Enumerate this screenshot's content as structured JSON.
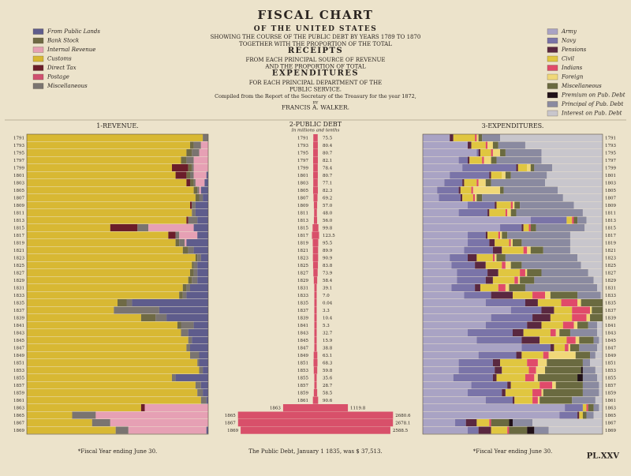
{
  "header": {
    "lines": [
      "FISCAL CHART",
      "OF THE UNITED STATES",
      "SHOWING THE COURSE OF THE PUBLIC DEBT BY YEARS 1789 TO 1870",
      "TOGETHER WITH THE PROPORTION OF THE TOTAL",
      "RECEIPTS",
      "FROM EACH PRINCIPAL SOURCE OF REVENUE",
      "AND THE PROPORTION OF TOTAL",
      "EXPENDITURES",
      "FOR EACH PRINCIPAL DEPARTMENT OF THE",
      "PUBLIC SERVICE.",
      "Compiled from the Report of the Secretary of the Treasury for the year 1872,",
      "BY",
      "FRANCIS A. WALKER."
    ],
    "plate": "PL.XXV",
    "debt_note": "The Public Debt, January 1 1835, was $ 37,513."
  },
  "chart_data": [
    {
      "type": "stacked-bar",
      "title": "1-REVENUE.",
      "footnote": "*Fiscal Year ending June 30.",
      "xlim": [
        0,
        100
      ],
      "categories": [
        "1791",
        "1793",
        "1795",
        "1797",
        "1799",
        "1801",
        "1803",
        "1805",
        "1807",
        "1809",
        "1811",
        "1813",
        "1815",
        "1817",
        "1819",
        "1821",
        "1823",
        "1825",
        "1827",
        "1829",
        "1831",
        "1833",
        "1835",
        "1837",
        "1839",
        "1841",
        "1843",
        "1845",
        "1847",
        "1849",
        "1851",
        "1853",
        "1855",
        "1857",
        "1859",
        "1861",
        "1863",
        "1865",
        "1867",
        "1869"
      ],
      "series": [
        {
          "name": "From Public Lands",
          "color": "#5e5c8c",
          "values": [
            0,
            0,
            0,
            0,
            0,
            1,
            2,
            4,
            3,
            7,
            7,
            6,
            8,
            6,
            12,
            8,
            4,
            6,
            6,
            6,
            10,
            12,
            42,
            27,
            23,
            8,
            11,
            9,
            10,
            5,
            5,
            3,
            18,
            4,
            3,
            1,
            0,
            0,
            0,
            1
          ]
        },
        {
          "name": "Bank Stock",
          "color": "#6f6a45",
          "values": [
            0,
            2,
            3,
            3,
            2,
            2,
            2,
            2,
            2,
            0,
            0,
            0,
            0,
            0,
            2,
            3,
            1,
            1,
            2,
            2,
            2,
            2,
            5,
            0,
            8,
            2,
            0,
            0,
            0,
            0,
            0,
            0,
            0,
            0,
            0,
            0,
            0,
            0,
            0,
            0
          ]
        },
        {
          "name": "Internal Revenue",
          "color": "#e6a0b4",
          "values": [
            0,
            4,
            5,
            8,
            8,
            7,
            5,
            1,
            0,
            0,
            0,
            0,
            25,
            10,
            1,
            0,
            0,
            0,
            0,
            0,
            0,
            0,
            0,
            0,
            0,
            0,
            0,
            0,
            0,
            0,
            0,
            0,
            0,
            0,
            0,
            0,
            35,
            62,
            54,
            43
          ]
        },
        {
          "name": "Customs",
          "color": "#d8b833",
          "values": [
            97,
            90,
            88,
            85,
            80,
            82,
            88,
            92,
            93,
            90,
            91,
            88,
            46,
            78,
            82,
            86,
            93,
            91,
            90,
            89,
            86,
            84,
            50,
            48,
            63,
            83,
            85,
            89,
            88,
            90,
            94,
            95,
            80,
            93,
            94,
            96,
            63,
            25,
            36,
            49
          ]
        },
        {
          "name": "Direct Tax",
          "color": "#6b1e2a",
          "values": [
            0,
            0,
            0,
            0,
            9,
            6,
            2,
            0,
            0,
            1,
            0,
            1,
            15,
            4,
            0,
            0,
            0,
            0,
            0,
            0,
            0,
            0,
            0,
            0,
            0,
            0,
            0,
            0,
            0,
            0,
            0,
            0,
            0,
            0,
            0,
            0,
            2,
            0,
            0,
            0
          ]
        },
        {
          "name": "Postage",
          "color": "#d05070",
          "values": [
            0,
            0,
            0,
            0,
            0,
            0,
            0,
            0,
            0,
            0,
            0,
            0,
            0,
            0,
            0,
            0,
            0,
            0,
            0,
            0,
            0,
            0,
            0,
            0,
            0,
            0,
            0,
            0,
            0,
            0,
            0,
            0,
            0,
            0,
            0,
            0,
            0,
            0,
            0,
            0
          ]
        },
        {
          "name": "Miscellaneous",
          "color": "#7a7470",
          "values": [
            3,
            4,
            4,
            4,
            1,
            2,
            1,
            1,
            2,
            2,
            2,
            5,
            6,
            2,
            3,
            3,
            2,
            2,
            2,
            3,
            2,
            2,
            3,
            25,
            6,
            7,
            4,
            2,
            2,
            5,
            1,
            2,
            2,
            3,
            3,
            3,
            0,
            13,
            10,
            7
          ]
        }
      ]
    },
    {
      "type": "spindle",
      "title": "2-PUBLIC DEBT",
      "subtitle": "In millions and tenths",
      "color": "#d8506a",
      "xlim": [
        0,
        3000
      ],
      "categories": [
        "1791",
        "1793",
        "1795",
        "1797",
        "1799",
        "1801",
        "1803",
        "1805",
        "1807",
        "1809",
        "1811",
        "1813",
        "1815",
        "1817",
        "1819",
        "1821",
        "1823",
        "1825",
        "1827",
        "1829",
        "1831",
        "1833",
        "1835",
        "1837",
        "1839",
        "1841",
        "1843",
        "1845",
        "1847",
        "1849",
        "1851",
        "1853",
        "1855",
        "1857",
        "1859",
        "1861",
        "1863",
        "1865",
        "1867",
        "1869"
      ],
      "values": [
        75.5,
        80.4,
        80.7,
        82.1,
        78.4,
        80.7,
        77.1,
        82.3,
        69.2,
        57.0,
        48.0,
        56.0,
        99.8,
        123.5,
        95.5,
        89.9,
        90.9,
        83.8,
        73.9,
        58.4,
        39.1,
        7.0,
        0.04,
        3.3,
        10.4,
        5.3,
        32.7,
        15.9,
        38.8,
        63.1,
        68.3,
        59.8,
        35.6,
        28.7,
        58.5,
        90.6,
        1119.8,
        2680.6,
        2678.1,
        2588.5
      ],
      "value_labels": [
        "75.5",
        "80.4",
        "80.7",
        "82.1",
        "78.4",
        "80.7",
        "77.1",
        "82.3",
        "69.2",
        "57.0",
        "48.0",
        "56.0",
        "99.8",
        "123.5",
        "95.5",
        "89.9",
        "90.9",
        "83.8",
        "73.9",
        "58.4",
        "39.1",
        "7.0",
        "0.04",
        "3.3",
        "10.4",
        "5.3",
        "32.7",
        "15.9",
        "38.8",
        "63.1",
        "68.3",
        "59.8",
        "35.6",
        "28.7",
        "58.5",
        "90.6",
        "1119.8",
        "2680.6",
        "2678.1",
        "2588.5"
      ]
    },
    {
      "type": "stacked-bar",
      "title": "3-EXPENDITURES.",
      "footnote": "*Fiscal Year ending June 30.",
      "xlim": [
        0,
        100
      ],
      "categories": [
        "1791",
        "1793",
        "1795",
        "1797",
        "1799",
        "1801",
        "1803",
        "1805",
        "1807",
        "1809",
        "1811",
        "1813",
        "1815",
        "1817",
        "1819",
        "1821",
        "1823",
        "1825",
        "1827",
        "1829",
        "1831",
        "1833",
        "1835",
        "1837",
        "1839",
        "1841",
        "1843",
        "1845",
        "1847",
        "1849",
        "1851",
        "1853",
        "1855",
        "1857",
        "1859",
        "1861",
        "1863",
        "1865",
        "1867",
        "1869"
      ],
      "series": [
        {
          "name": "Army",
          "color": "#a9a3c4",
          "values": [
            15,
            25,
            30,
            20,
            22,
            15,
            12,
            8,
            9,
            25,
            20,
            60,
            43,
            25,
            25,
            23,
            15,
            16,
            19,
            19,
            16,
            23,
            35,
            49,
            38,
            35,
            25,
            30,
            55,
            31,
            20,
            20,
            17,
            27,
            25,
            35,
            79,
            76,
            18,
            25
          ]
        },
        {
          "name": "Navy",
          "color": "#7a74a8",
          "values": [
            0,
            0,
            1,
            5,
            30,
            22,
            10,
            12,
            12,
            15,
            16,
            20,
            12,
            10,
            12,
            16,
            10,
            13,
            17,
            16,
            13,
            15,
            22,
            17,
            23,
            23,
            25,
            25,
            16,
            21,
            19,
            20,
            22,
            20,
            19,
            15,
            10,
            10,
            6,
            6
          ]
        },
        {
          "name": "Pensions",
          "color": "#5a2840",
          "values": [
            2,
            2,
            1,
            1,
            1,
            1,
            1,
            1,
            1,
            1,
            1,
            0,
            1,
            1,
            3,
            5,
            5,
            6,
            6,
            4,
            3,
            12,
            7,
            7,
            10,
            8,
            6,
            10,
            2,
            3,
            4,
            4,
            2,
            2,
            2,
            1,
            0,
            1,
            6,
            7
          ]
        },
        {
          "name": "Civil",
          "color": "#e0c640",
          "values": [
            12,
            8,
            6,
            7,
            5,
            6,
            7,
            6,
            6,
            8,
            9,
            3,
            3,
            6,
            8,
            12,
            9,
            9,
            12,
            12,
            10,
            11,
            13,
            10,
            12,
            12,
            15,
            15,
            6,
            12,
            15,
            15,
            16,
            16,
            15,
            10,
            2,
            2,
            7,
            9
          ]
        },
        {
          "name": "Indians",
          "color": "#e04a6a",
          "values": [
            1,
            1,
            1,
            1,
            0,
            0,
            1,
            1,
            1,
            1,
            1,
            1,
            1,
            1,
            1,
            2,
            1,
            2,
            3,
            2,
            4,
            7,
            9,
            10,
            8,
            6,
            3,
            5,
            2,
            3,
            6,
            4,
            5,
            7,
            5,
            3,
            1,
            0,
            1,
            1
          ]
        },
        {
          "name": "Foreign",
          "color": "#f0d878",
          "values": [
            1,
            3,
            4,
            4,
            2,
            2,
            4,
            15,
            1,
            1,
            2,
            0,
            0,
            1,
            1,
            2,
            1,
            3,
            1,
            1,
            2,
            3,
            2,
            1,
            2,
            2,
            2,
            2,
            1,
            15,
            5,
            5,
            2,
            2,
            1,
            1,
            0,
            0,
            0,
            0
          ]
        },
        {
          "name": "Miscellaneous",
          "color": "#6a6a40",
          "values": [
            2,
            3,
            3,
            3,
            2,
            3,
            3,
            2,
            3,
            3,
            3,
            2,
            3,
            3,
            5,
            7,
            5,
            6,
            8,
            8,
            9,
            15,
            12,
            6,
            7,
            6,
            6,
            8,
            5,
            8,
            20,
            20,
            22,
            15,
            22,
            18,
            3,
            2,
            10,
            10
          ]
        },
        {
          "name": "Premium on Pub. Debt",
          "color": "#201018",
          "values": [
            0,
            0,
            0,
            0,
            0,
            0,
            0,
            0,
            0,
            0,
            0,
            0,
            0,
            0,
            0,
            0,
            0,
            0,
            0,
            0,
            0,
            0,
            0,
            0,
            0,
            0,
            0,
            0,
            0,
            0,
            0,
            1,
            3,
            0,
            0,
            0,
            0,
            0,
            2,
            4
          ]
        },
        {
          "name": "Principal of Pub. Debt",
          "color": "#8a8aa0",
          "values": [
            10,
            15,
            20,
            25,
            10,
            20,
            30,
            30,
            45,
            30,
            37,
            5,
            27,
            35,
            27,
            15,
            40,
            33,
            26,
            33,
            40,
            13,
            0,
            0,
            0,
            5,
            15,
            3,
            10,
            3,
            4,
            7,
            8,
            9,
            9,
            13,
            3,
            4,
            11,
            8
          ]
        },
        {
          "name": "Interest on Pub. Debt",
          "color": "#c8c6cc",
          "values": [
            57,
            43,
            34,
            34,
            28,
            31,
            32,
            25,
            22,
            16,
            11,
            9,
            10,
            18,
            18,
            18,
            14,
            12,
            8,
            5,
            3,
            1,
            0,
            0,
            0,
            3,
            3,
            2,
            3,
            4,
            7,
            4,
            3,
            2,
            2,
            4,
            2,
            5,
            39,
            30
          ]
        }
      ]
    }
  ]
}
